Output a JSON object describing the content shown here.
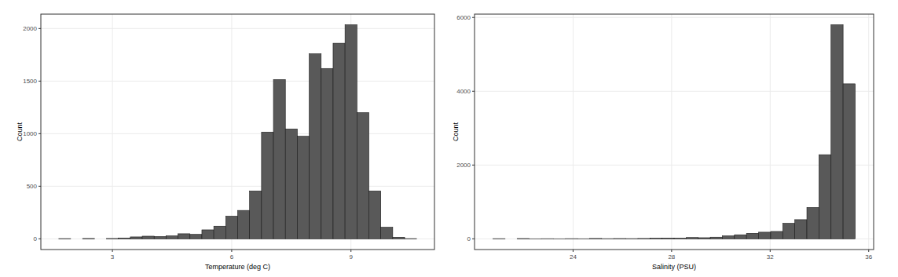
{
  "chart_data": [
    {
      "type": "histogram",
      "x_label": "Temperature (deg C)",
      "y_label": "Count",
      "bins": [
        1.65,
        1.95,
        2.25,
        2.55,
        2.85,
        3.15,
        3.45,
        3.75,
        4.05,
        4.35,
        4.65,
        4.95,
        5.25,
        5.55,
        5.85,
        6.15,
        6.45,
        6.75,
        7.05,
        7.35,
        7.65,
        7.95,
        8.25,
        8.55,
        8.85,
        9.15,
        9.45,
        9.75,
        10.05,
        10.35,
        10.65
      ],
      "values": [
        2,
        0,
        3,
        0,
        3,
        8,
        18,
        25,
        22,
        28,
        48,
        42,
        85,
        120,
        215,
        270,
        455,
        1015,
        1515,
        1045,
        975,
        1760,
        1620,
        1860,
        2035,
        1200,
        455,
        110,
        15,
        2
      ],
      "color": "#595959",
      "xlim": [
        1.2,
        11.1
      ],
      "xticks": [
        3,
        6,
        9
      ],
      "ylim": [
        -102,
        2137
      ],
      "yticks": [
        0,
        500,
        1000,
        1500,
        2000
      ],
      "grid": true
    },
    {
      "type": "histogram",
      "x_label": "Salinity (PSU)",
      "y_label": "Count",
      "bins": [
        20.75,
        21.24,
        21.73,
        22.22,
        22.71,
        23.2,
        23.69,
        24.18,
        24.67,
        25.16,
        25.65,
        26.14,
        26.63,
        27.12,
        27.61,
        28.1,
        28.59,
        29.08,
        29.57,
        30.06,
        30.55,
        31.04,
        31.53,
        32.02,
        32.51,
        33.0,
        33.49,
        33.98,
        34.47,
        34.96,
        35.45
      ],
      "values": [
        5,
        0,
        8,
        2,
        4,
        2,
        5,
        3,
        10,
        5,
        8,
        6,
        10,
        18,
        22,
        20,
        35,
        30,
        45,
        80,
        110,
        150,
        180,
        200,
        420,
        520,
        850,
        2280,
        5800,
        4200
      ],
      "color": "#595959",
      "xlim": [
        20.0,
        36.2
      ],
      "xticks": [
        24,
        28,
        32,
        36
      ],
      "ylim": [
        -290,
        6090
      ],
      "yticks": [
        0,
        2000,
        4000,
        6000
      ],
      "grid": true
    }
  ]
}
